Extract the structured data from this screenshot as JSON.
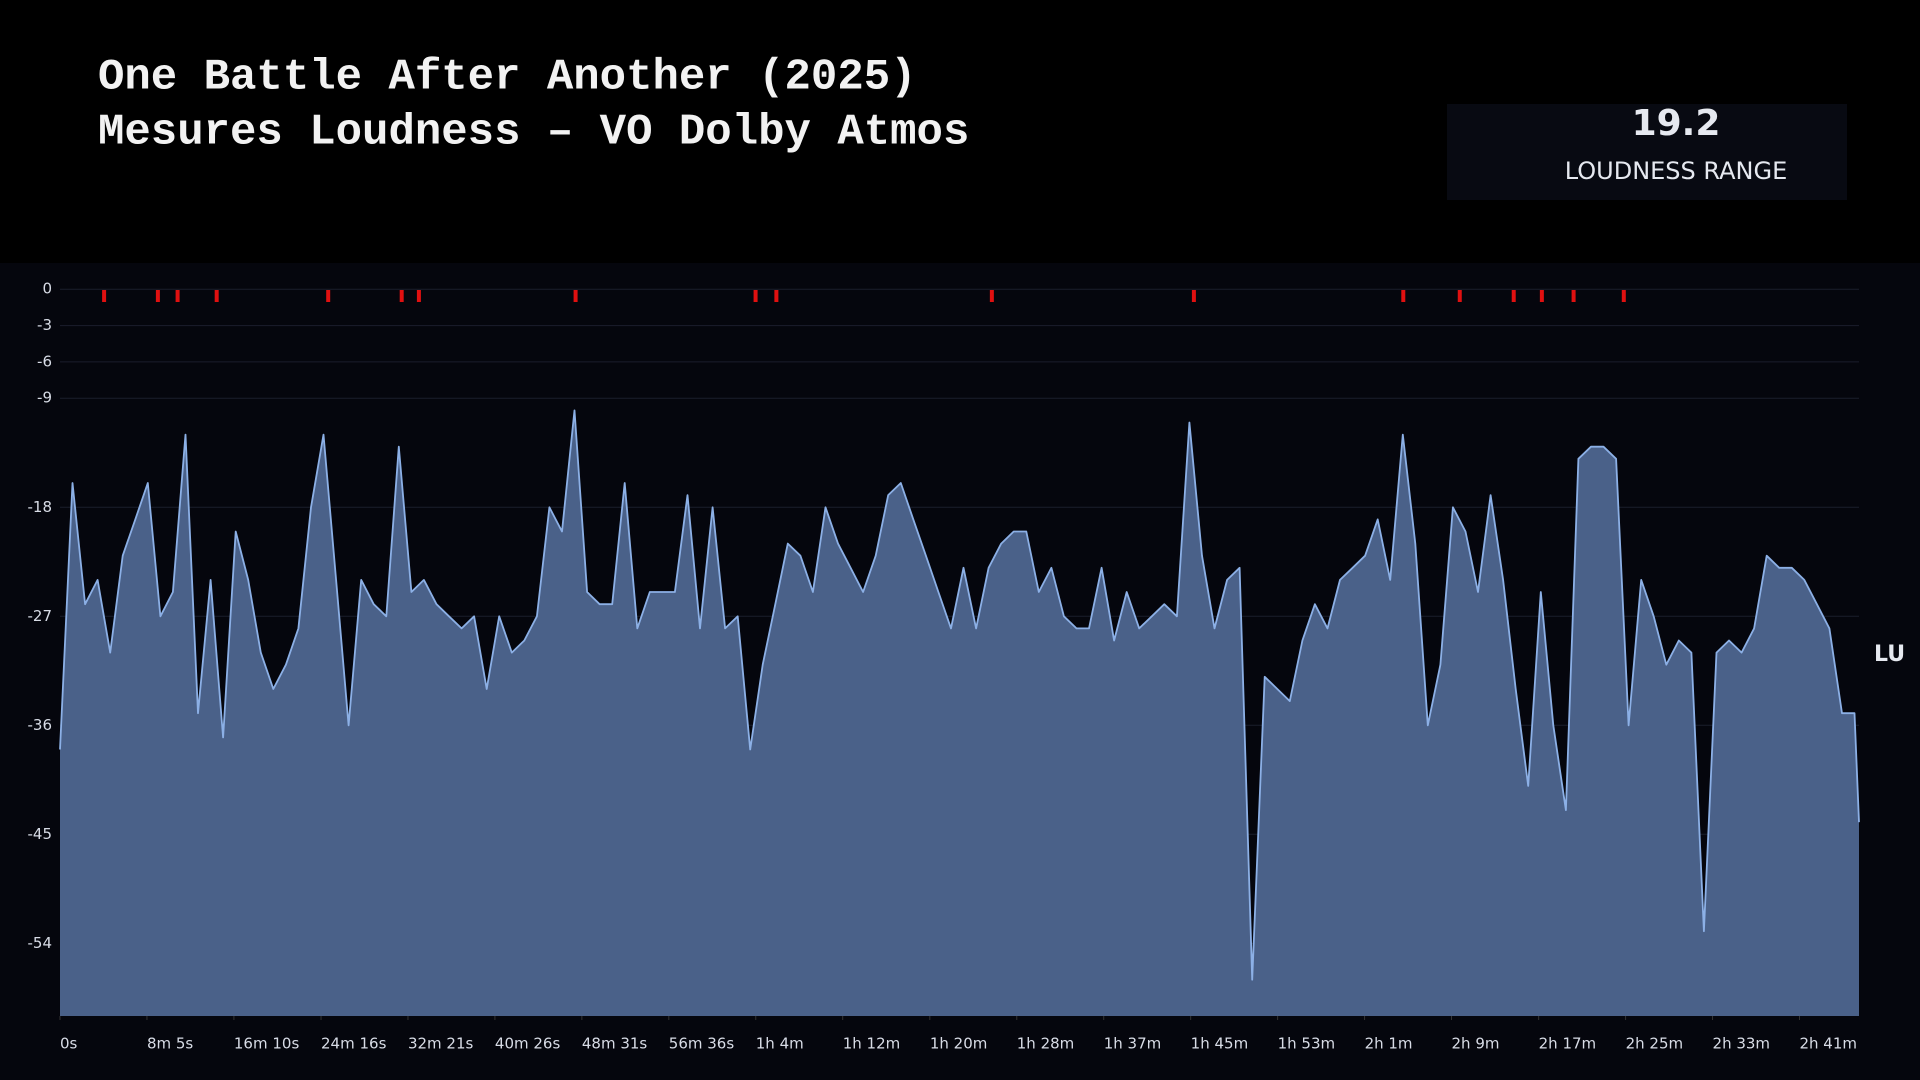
{
  "chart_data": {
    "type": "area",
    "title": "One Battle After Another (2025)",
    "subtitle": "Mesures Loudness – VO Dolby Atmos",
    "stat": {
      "value": 19.2,
      "label": "LOUDNESS RANGE"
    },
    "y_label": "LU",
    "color": "#8cb0e6",
    "fill": "#4a6189",
    "peak_color": "#e01010",
    "xlim": [
      0,
      10035
    ],
    "ylim": [
      -60,
      2
    ],
    "yticks": [
      0,
      -3,
      -6,
      -9,
      -18,
      -27,
      -36,
      -45,
      -54
    ],
    "xticks": [
      {
        "value": 0,
        "label": "0s"
      },
      {
        "value": 485,
        "label": "8m 5s"
      },
      {
        "value": 970,
        "label": "16m 10s"
      },
      {
        "value": 1456,
        "label": "24m 16s"
      },
      {
        "value": 1941,
        "label": "32m 21s"
      },
      {
        "value": 2426,
        "label": "40m 26s"
      },
      {
        "value": 2911,
        "label": "48m 31s"
      },
      {
        "value": 3396,
        "label": "56m 36s"
      },
      {
        "value": 3881,
        "label": "1h 4m"
      },
      {
        "value": 4366,
        "label": "1h 12m"
      },
      {
        "value": 4852,
        "label": "1h 20m"
      },
      {
        "value": 5337,
        "label": "1h 28m"
      },
      {
        "value": 5822,
        "label": "1h 37m"
      },
      {
        "value": 6307,
        "label": "1h 45m"
      },
      {
        "value": 6792,
        "label": "1h 53m"
      },
      {
        "value": 7277,
        "label": "2h 1m"
      },
      {
        "value": 7762,
        "label": "2h 9m"
      },
      {
        "value": 8248,
        "label": "2h 17m"
      },
      {
        "value": 8733,
        "label": "2h 25m"
      },
      {
        "value": 9218,
        "label": "2h 33m"
      },
      {
        "value": 9703,
        "label": "2h 41m"
      }
    ],
    "grid": true,
    "x": [
      0,
      70,
      140,
      210,
      280,
      350,
      420,
      490,
      560,
      630,
      700,
      770,
      840,
      910,
      980,
      1050,
      1120,
      1190,
      1260,
      1330,
      1400,
      1470,
      1540,
      1610,
      1680,
      1750,
      1820,
      1890,
      1960,
      2030,
      2100,
      2170,
      2240,
      2310,
      2380,
      2450,
      2520,
      2590,
      2660,
      2730,
      2800,
      2870,
      2940,
      3010,
      3080,
      3150,
      3220,
      3290,
      3360,
      3430,
      3500,
      3570,
      3640,
      3710,
      3780,
      3850,
      3920,
      3990,
      4060,
      4130,
      4200,
      4270,
      4340,
      4410,
      4480,
      4550,
      4620,
      4690,
      4760,
      4830,
      4900,
      4970,
      5040,
      5110,
      5180,
      5250,
      5320,
      5390,
      5460,
      5530,
      5600,
      5670,
      5740,
      5810,
      5880,
      5950,
      6020,
      6090,
      6160,
      6230,
      6300,
      6370,
      6440,
      6510,
      6580,
      6650,
      6720,
      6790,
      6860,
      6930,
      7000,
      7070,
      7140,
      7210,
      7280,
      7350,
      7420,
      7490,
      7560,
      7630,
      7700,
      7770,
      7840,
      7910,
      7980,
      8050,
      8120,
      8190,
      8260,
      8330,
      8400,
      8470,
      8540,
      8610,
      8680,
      8750,
      8820,
      8890,
      8960,
      9030,
      9100,
      9170,
      9240,
      9310,
      9380,
      9450,
      9520,
      9590,
      9660,
      9730,
      9800,
      9870,
      9940,
      10010,
      10035
    ],
    "values": [
      -38,
      -16,
      -26,
      -24,
      -30,
      -22,
      -19,
      -16,
      -27,
      -25,
      -12,
      -35,
      -24,
      -37,
      -20,
      -24,
      -30,
      -33,
      -31,
      -28,
      -18,
      -12,
      -24,
      -36,
      -24,
      -26,
      -27,
      -13,
      -25,
      -24,
      -26,
      -27,
      -28,
      -27,
      -33,
      -27,
      -30,
      -29,
      -27,
      -18,
      -20,
      -10,
      -25,
      -26,
      -26,
      -16,
      -28,
      -25,
      -25,
      -25,
      -17,
      -28,
      -18,
      -28,
      -27,
      -38,
      -31,
      -26,
      -21,
      -22,
      -25,
      -18,
      -21,
      -23,
      -25,
      -22,
      -17,
      -16,
      -19,
      -22,
      -25,
      -28,
      -23,
      -28,
      -23,
      -21,
      -20,
      -20,
      -25,
      -23,
      -27,
      -28,
      -28,
      -23,
      -29,
      -25,
      -28,
      -27,
      -26,
      -27,
      -11,
      -22,
      -28,
      -24,
      -23,
      -57,
      -32,
      -33,
      -34,
      -29,
      -26,
      -28,
      -24,
      -23,
      -22,
      -19,
      -24,
      -12,
      -21,
      -36,
      -31,
      -18,
      -20,
      -25,
      -17,
      -24,
      -33,
      -41,
      -25,
      -36,
      -43,
      -14,
      -13,
      -13,
      -14,
      -36,
      -24,
      -27,
      -31,
      -29,
      -30,
      -53,
      -30,
      -29,
      -30,
      -28,
      -22,
      -23,
      -23,
      -24,
      -26,
      -28,
      -35,
      -35,
      -44
    ],
    "peaks": [
      246,
      546,
      656,
      874,
      1496,
      1906,
      2002,
      2876,
      3880,
      3996,
      5198,
      6325,
      7493,
      7808,
      8109,
      8266,
      8443,
      8723
    ]
  }
}
